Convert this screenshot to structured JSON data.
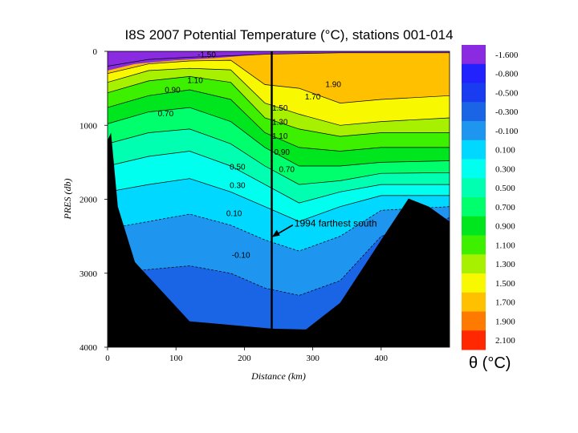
{
  "chart_data": {
    "type": "heatmap",
    "title": "I8S 2007 Potential Temperature (°C), stations 001-014",
    "xlabel": "Distance (km)",
    "ylabel": "PRES (db)",
    "xlim": [
      0,
      500
    ],
    "ylim": [
      4000,
      0
    ],
    "x_ticks": [
      "0",
      "100",
      "200",
      "300",
      "400"
    ],
    "x_tick_values": [
      0,
      100,
      200,
      300,
      400
    ],
    "y_ticks": [
      "0",
      "1000",
      "2000",
      "3000",
      "4000"
    ],
    "y_tick_values": [
      0,
      1000,
      2000,
      3000,
      4000
    ],
    "colorbar_title": "θ (°C)",
    "colorbar_labels": [
      "-1.600",
      "-0.800",
      "-0.500",
      "-0.300",
      "-0.100",
      "0.100",
      "0.300",
      "0.500",
      "0.700",
      "0.900",
      "1.100",
      "1.300",
      "1.500",
      "1.700",
      "1.900",
      "2.100"
    ],
    "colorbar_colors": [
      "#8a2be2",
      "#2222ff",
      "#1a3cf0",
      "#1a64e6",
      "#1e96f0",
      "#00d8ff",
      "#00ffee",
      "#00ffb0",
      "#00ff6c",
      "#00e61e",
      "#3cf000",
      "#a6f000",
      "#f8f800",
      "#ffc000",
      "#ff7a00",
      "#ff2800"
    ],
    "contour_labels": [
      {
        "text": "1.70",
        "x": 300,
        "y": 650
      },
      {
        "text": "1.50",
        "x": 252,
        "y": 800
      },
      {
        "text": "1.30",
        "x": 252,
        "y": 990
      },
      {
        "text": "1.10",
        "x": 252,
        "y": 1180
      },
      {
        "text": "0.90",
        "x": 255,
        "y": 1400
      },
      {
        "text": "0.70",
        "x": 262,
        "y": 1630
      },
      {
        "text": "0.50",
        "x": 190,
        "y": 1600
      },
      {
        "text": "0.30",
        "x": 190,
        "y": 1850
      },
      {
        "text": "0.10",
        "x": 185,
        "y": 2230
      },
      {
        "text": "-0.10",
        "x": 195,
        "y": 2790
      },
      {
        "text": "0.90",
        "x": 95,
        "y": 560
      },
      {
        "text": "0.70",
        "x": 85,
        "y": 880
      },
      {
        "text": "1.10",
        "x": 128,
        "y": 430
      },
      {
        "text": "1.90",
        "x": 330,
        "y": 480
      },
      {
        "text": "-1.50",
        "x": 145,
        "y": 80
      }
    ],
    "annotation": {
      "text": "1994 farthest south",
      "x": 238,
      "y": 2500
    },
    "marker_line_x": 240,
    "bottom_profile": [
      [
        0,
        1200
      ],
      [
        5,
        1100
      ],
      [
        15,
        2100
      ],
      [
        40,
        2850
      ],
      [
        120,
        3650
      ],
      [
        240,
        3750
      ],
      [
        290,
        3760
      ],
      [
        340,
        3400
      ],
      [
        400,
        2550
      ],
      [
        440,
        1990
      ],
      [
        470,
        2100
      ],
      [
        500,
        2300
      ]
    ],
    "vertical_sections": [
      {
        "x": 0,
        "isotherms": [
          120,
          200,
          300,
          420,
          560,
          760,
          980,
          1250,
          1550,
          1900,
          2400,
          3000
        ]
      },
      {
        "x": 60,
        "isotherms": [
          60,
          110,
          170,
          260,
          400,
          600,
          820,
          1100,
          1420,
          1800,
          2300,
          2950
        ]
      },
      {
        "x": 120,
        "isotherms": [
          45,
          80,
          130,
          230,
          340,
          520,
          760,
          1050,
          1350,
          1720,
          2200,
          2900
        ]
      },
      {
        "x": 180,
        "isotherms": [
          30,
          60,
          120,
          250,
          420,
          650,
          950,
          1250,
          1550,
          1900,
          2350,
          3000
        ]
      },
      {
        "x": 230,
        "isotherms": [
          20,
          40,
          450,
          700,
          900,
          1100,
          1300,
          1550,
          1800,
          2100,
          2550,
          3200
        ]
      },
      {
        "x": 280,
        "isotherms": [
          15,
          30,
          500,
          850,
          1050,
          1300,
          1550,
          1800,
          2050,
          2300,
          2700,
          3300
        ]
      },
      {
        "x": 340,
        "isotherms": [
          10,
          20,
          700,
          1000,
          1150,
          1350,
          1550,
          1750,
          1900,
          2100,
          2500,
          3100
        ]
      },
      {
        "x": 400,
        "isotherms": [
          10,
          20,
          650,
          950,
          1100,
          1300,
          1500,
          1650,
          1800,
          1950,
          2150,
          2500
        ]
      },
      {
        "x": 500,
        "isotherms": [
          10,
          20,
          600,
          900,
          1100,
          1300,
          1480,
          1640,
          1800,
          1950,
          2100,
          2250
        ]
      }
    ],
    "band_colors_top_to_bottom": [
      "#ff2800",
      "#ff7a00",
      "#ffc000",
      "#f8f800",
      "#a6f000",
      "#3cf000",
      "#00e61e",
      "#00ff6c",
      "#00ffb0",
      "#00ffee",
      "#00d8ff",
      "#1e96f0",
      "#1a64e6"
    ],
    "surface_color": "#8a2be2"
  }
}
